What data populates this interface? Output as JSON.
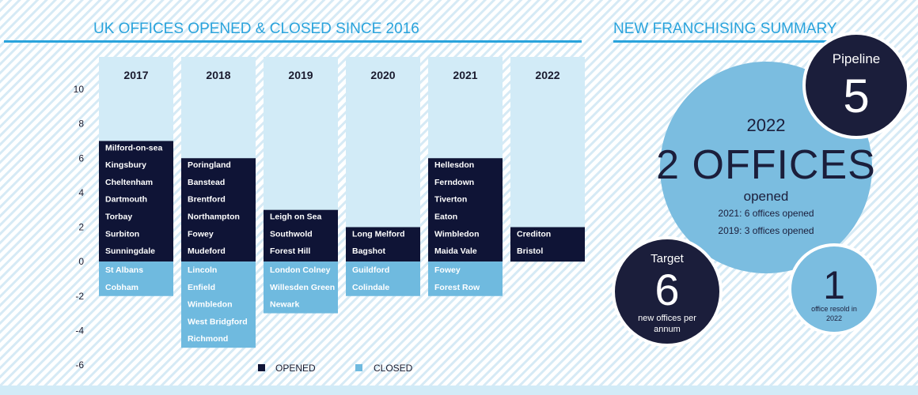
{
  "colors": {
    "accent": "#29a3dc",
    "opened": "#0f1436",
    "closed": "#6fbadf",
    "column_bg": "#d2ebf7",
    "stripe": "#d6eaf5",
    "big_circle": "#7bbde0",
    "dark_circle": "#1b1e3b",
    "axis_text": "#1a1a2e"
  },
  "chart_data": {
    "type": "bar",
    "title": "UK OFFICES OPENED & CLOSED SINCE 2016",
    "categories": [
      "2017",
      "2018",
      "2019",
      "2020",
      "2021",
      "2022"
    ],
    "ylim": [
      -6,
      10
    ],
    "yticks": [
      10,
      8,
      6,
      4,
      2,
      0,
      -2,
      -4,
      -6
    ],
    "series": [
      {
        "name": "OPENED",
        "values": [
          7,
          6,
          3,
          2,
          6,
          2
        ],
        "labels": [
          [
            "Milford-on-sea",
            "Kingsbury",
            "Cheltenham",
            "Dartmouth",
            "Torbay",
            "Surbiton",
            "Sunningdale"
          ],
          [
            "Poringland",
            "Banstead",
            "Brentford",
            "Northampton",
            "Fowey",
            "Mudeford"
          ],
          [
            "Leigh on Sea",
            "Southwold",
            "Forest Hill"
          ],
          [
            "Long Melford",
            "Bagshot"
          ],
          [
            "Hellesdon",
            "Ferndown",
            "Tiverton",
            "Eaton",
            "Wimbledon",
            "Maida Vale"
          ],
          [
            "Crediton",
            "Bristol"
          ]
        ]
      },
      {
        "name": "CLOSED",
        "values": [
          -2,
          -5,
          -3,
          -2,
          -2,
          0
        ],
        "labels": [
          [
            "St Albans",
            "Cobham"
          ],
          [
            "Lincoln",
            "Enfield",
            "Wimbledon",
            "West Bridgford",
            "Richmond"
          ],
          [
            "London Colney",
            "Willesden Green",
            "Newark"
          ],
          [
            "Guildford",
            "Colindale"
          ],
          [
            "Fowey",
            "Forest Row"
          ],
          []
        ]
      }
    ],
    "legend": {
      "position": "bottom"
    }
  },
  "summary": {
    "title": "NEW FRANCHISING SUMMARY",
    "main": {
      "year": "2022",
      "headline": "2 OFFICES",
      "subtitle": "opened",
      "line1": "2021: 6 offices opened",
      "line2": "2019: 3 offices opened"
    },
    "pipeline": {
      "label": "Pipeline",
      "value": "5"
    },
    "target": {
      "label": "Target",
      "value": "6",
      "caption1": "new offices per",
      "caption2": "annum"
    },
    "resold": {
      "value": "1",
      "caption1": "office resold in",
      "caption2": "2022"
    }
  }
}
